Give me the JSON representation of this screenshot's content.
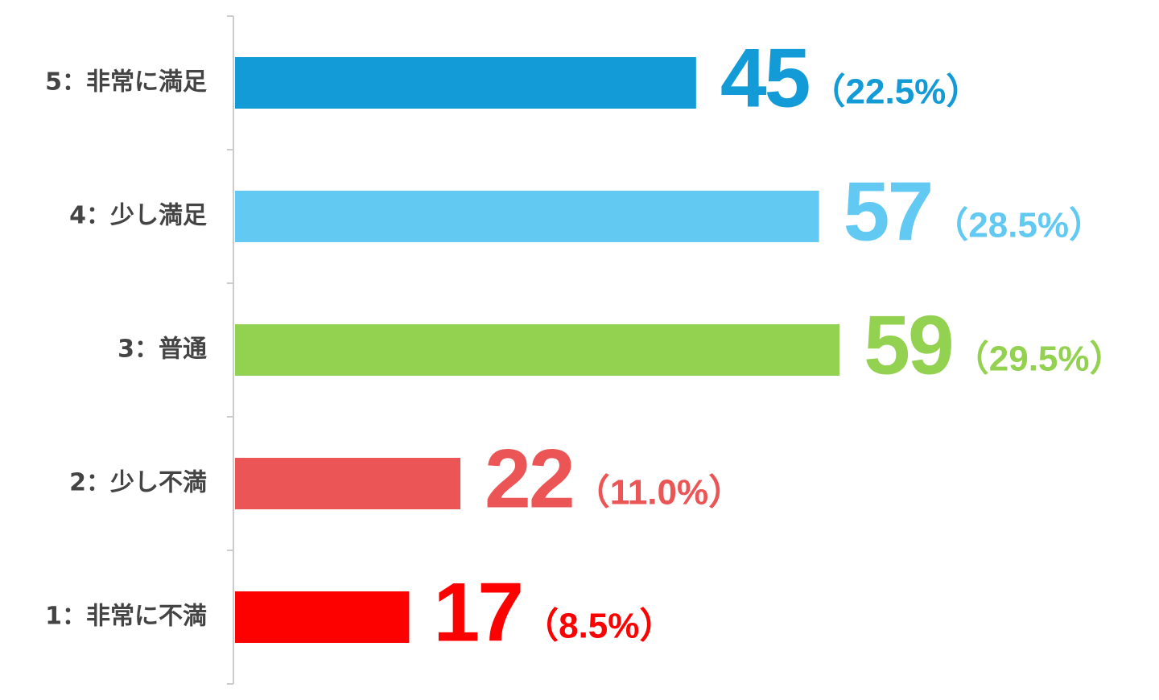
{
  "chart_data": {
    "type": "bar",
    "orientation": "horizontal",
    "categories": [
      "5：非常に満足",
      "4：少し満足",
      "3：普通",
      "2：少し不満",
      "1：非常に不満"
    ],
    "values": [
      45,
      57,
      59,
      22,
      17
    ],
    "percent_labels": [
      "（22.5%）",
      "（28.5%）",
      "（29.5%）",
      "（11.0%）",
      "（8.5%）"
    ],
    "colors": [
      "#129bd6",
      "#62caf2",
      "#93d150",
      "#eb5556",
      "#fd0000"
    ]
  }
}
